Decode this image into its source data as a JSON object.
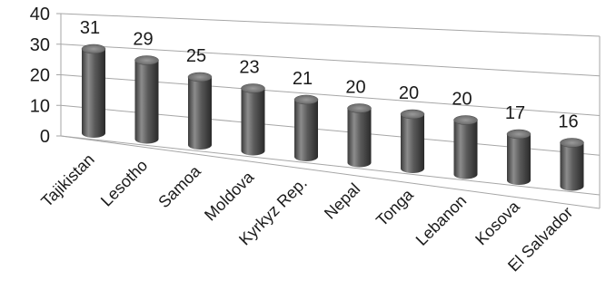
{
  "chart_data": {
    "type": "bar",
    "title": "",
    "xlabel": "",
    "ylabel": "",
    "categories": [
      "Tajikistan",
      "Lesotho",
      "Samoa",
      "Moldova",
      "Kyrkyz Rep.",
      "Nepal",
      "Tonga",
      "Lebanon",
      "Kosova",
      "El Salvador"
    ],
    "values": [
      31,
      29,
      25,
      23,
      21,
      20,
      20,
      20,
      17,
      16
    ],
    "ylim": [
      0,
      40
    ],
    "yticks": [
      0,
      10,
      20,
      30,
      40
    ],
    "grid": true,
    "legend": "none",
    "style": "3d-cylinder",
    "colors": {
      "bar": "#5a5a5a",
      "grid": "#a6a6a6",
      "text": "#1a1a1a"
    }
  }
}
